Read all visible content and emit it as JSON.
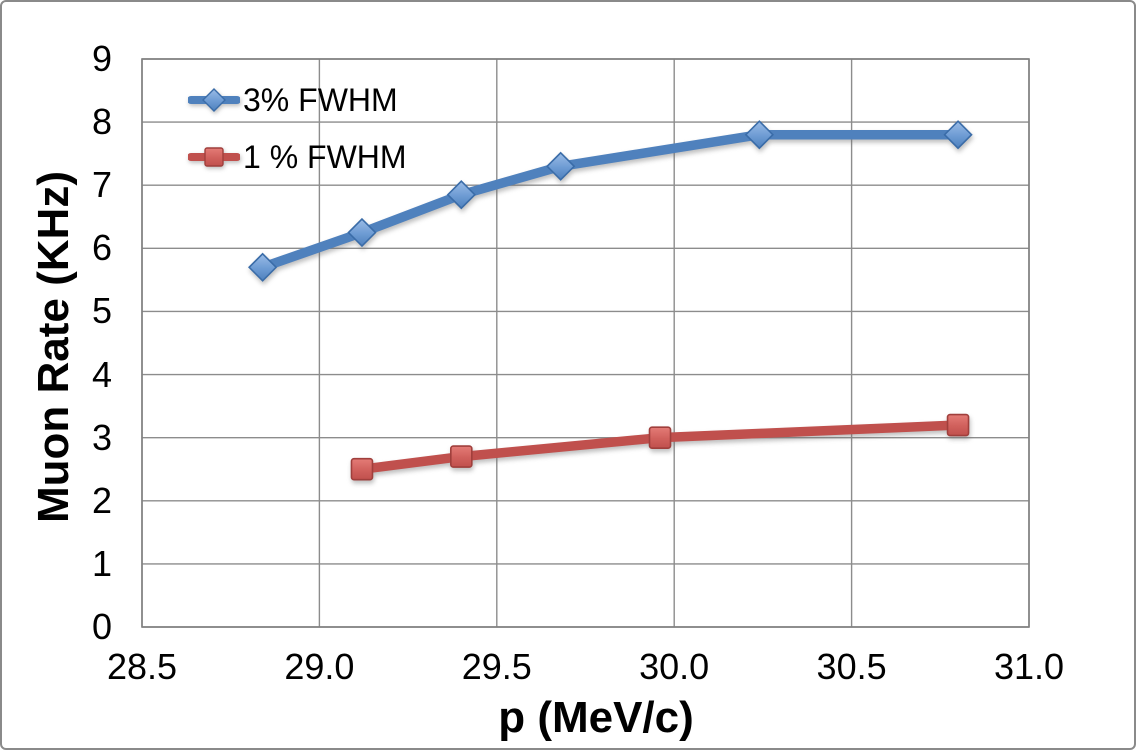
{
  "chart_data": {
    "type": "line",
    "title": "",
    "xlabel": "p (MeV/c)",
    "ylabel": "Muon Rate (KHz)",
    "xlim": [
      28.5,
      31.0
    ],
    "ylim": [
      0,
      9
    ],
    "x_tick_labels": [
      "28.5",
      "29.0",
      "29.5",
      "30.0",
      "30.5",
      "31.0"
    ],
    "x_tick_values": [
      28.5,
      29.0,
      29.5,
      30.0,
      30.5,
      31.0
    ],
    "y_tick_labels": [
      "0",
      "1",
      "2",
      "3",
      "4",
      "5",
      "6",
      "7",
      "8",
      "9"
    ],
    "y_tick_values": [
      0,
      1,
      2,
      3,
      4,
      5,
      6,
      7,
      8,
      9
    ],
    "grid": true,
    "legend_position": "top-left-inside",
    "series": [
      {
        "name": "3% FWHM",
        "marker": "diamond",
        "color": "#4F81BD",
        "x": [
          28.84,
          29.12,
          29.4,
          29.68,
          30.24,
          30.8
        ],
        "values": [
          5.7,
          6.25,
          6.85,
          7.3,
          7.8,
          7.8
        ]
      },
      {
        "name": "1 % FWHM",
        "marker": "square",
        "color": "#C0504D",
        "x": [
          29.12,
          29.4,
          29.96,
          30.8
        ],
        "values": [
          2.5,
          2.7,
          3.0,
          3.2
        ]
      }
    ]
  },
  "colors": {
    "series_blue": "#4F81BD",
    "series_blue_edge": "#3A6CA8",
    "series_red": "#C0504D",
    "series_red_edge": "#A03F3C",
    "gridline": "#8C8C8C",
    "plot_border": "#808080",
    "frame_border": "#8A8A8A",
    "text": "#000000"
  }
}
